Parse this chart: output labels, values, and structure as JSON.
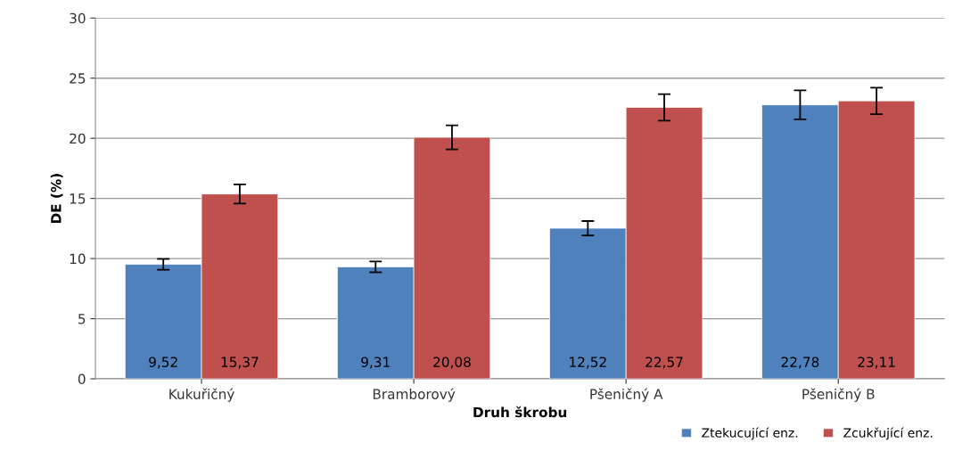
{
  "chart_data": {
    "type": "bar",
    "xlabel": "Druh škrobu",
    "ylabel": "DE (%)",
    "categories": [
      "Kukuřičný",
      "Bramborový",
      "Pšeničný A",
      "Pšeničný B"
    ],
    "series": [
      {
        "name": "Ztekucující enz.",
        "color": "#4f81bd",
        "values": [
          9.52,
          9.31,
          12.52,
          22.78
        ],
        "value_labels": [
          "9,52",
          "9,31",
          "12,52",
          "22,78"
        ],
        "errors": [
          0.45,
          0.45,
          0.6,
          1.2
        ]
      },
      {
        "name": "Zcukřující enz.",
        "color": "#c0504d",
        "values": [
          15.37,
          20.08,
          22.57,
          23.11
        ],
        "value_labels": [
          "15,37",
          "20,08",
          "22,57",
          "23,11"
        ],
        "errors": [
          0.8,
          1.0,
          1.1,
          1.1
        ]
      }
    ],
    "ylim": [
      0,
      30
    ],
    "yticks": [
      0,
      5,
      10,
      15,
      20,
      25,
      30
    ],
    "grid": "y",
    "legend": "bottom right"
  }
}
